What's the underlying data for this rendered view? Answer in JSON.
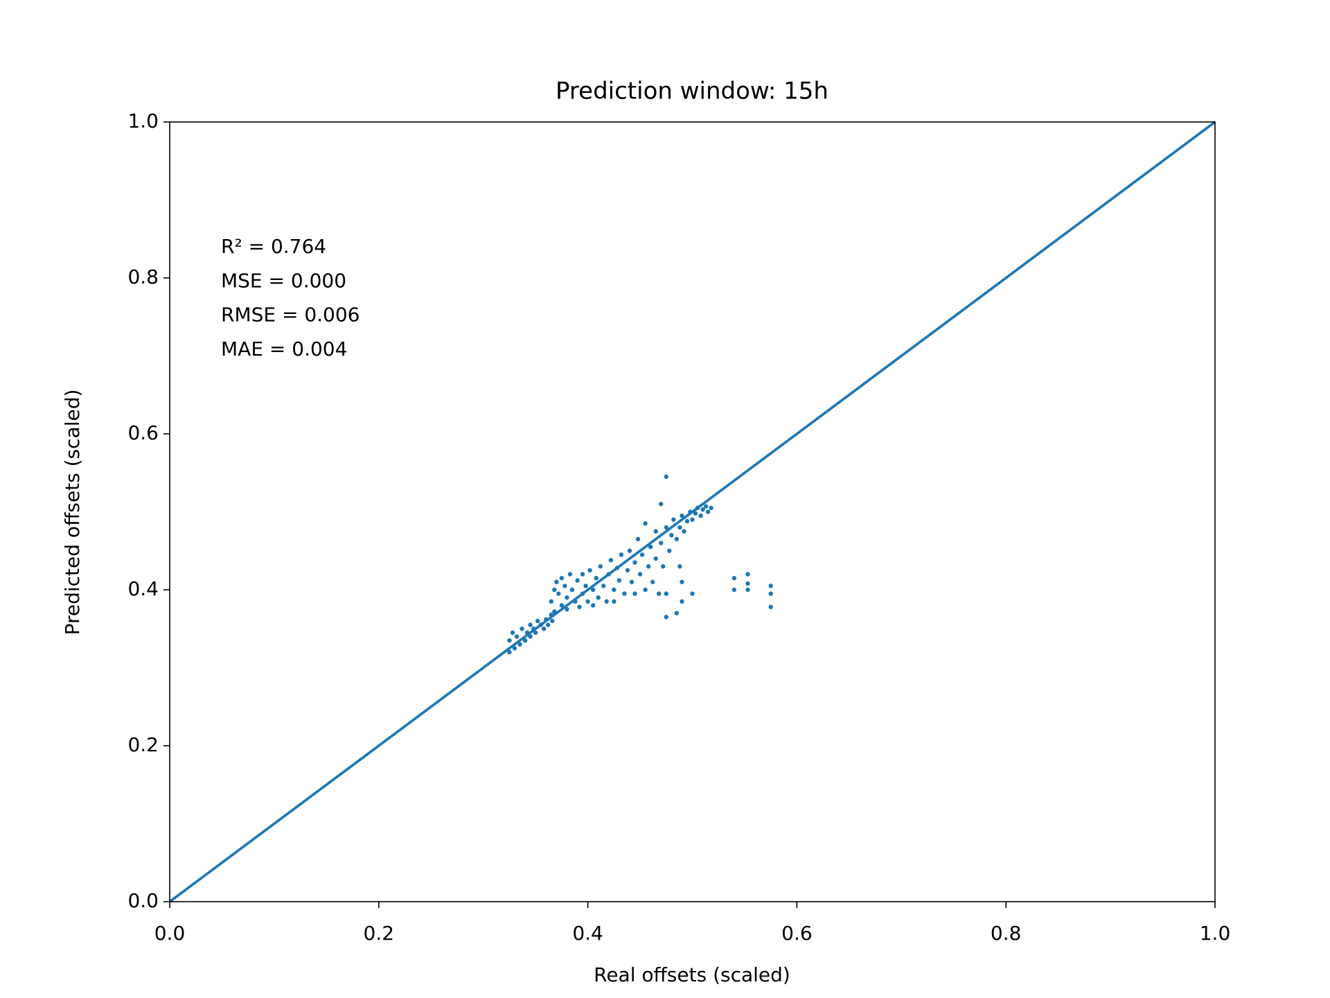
{
  "chart_data": {
    "type": "scatter",
    "title": "Prediction window: 15h",
    "xlabel": "Real offsets (scaled)",
    "ylabel": "Predicted offsets (scaled)",
    "annotations": [
      "R² = 0.764",
      "MSE = 0.000",
      "RMSE = 0.006",
      "MAE = 0.004"
    ],
    "xlim": [
      0,
      1
    ],
    "ylim": [
      0,
      1
    ],
    "xticks": [
      {
        "value": 0,
        "label": "0.0"
      },
      0.2,
      0.4,
      0.6,
      0.8,
      {
        "value": 1,
        "label": "1.0"
      }
    ],
    "yticks": [
      {
        "value": 0,
        "label": "0.0"
      },
      0.2,
      0.4,
      0.6,
      0.8,
      {
        "value": 1,
        "label": "1.0"
      }
    ],
    "series": [
      {
        "type": "scatter",
        "color": "#1f77b4",
        "x": [
          0.325,
          0.325,
          0.328,
          0.33,
          0.332,
          0.335,
          0.337,
          0.34,
          0.342,
          0.345,
          0.345,
          0.348,
          0.35,
          0.352,
          0.355,
          0.358,
          0.36,
          0.362,
          0.365,
          0.366,
          0.368,
          0.365,
          0.368,
          0.37,
          0.372,
          0.375,
          0.375,
          0.378,
          0.38,
          0.38,
          0.383,
          0.385,
          0.388,
          0.39,
          0.392,
          0.395,
          0.395,
          0.398,
          0.4,
          0.402,
          0.405,
          0.405,
          0.408,
          0.41,
          0.412,
          0.415,
          0.418,
          0.42,
          0.422,
          0.425,
          0.425,
          0.428,
          0.43,
          0.432,
          0.435,
          0.438,
          0.44,
          0.442,
          0.445,
          0.445,
          0.448,
          0.45,
          0.452,
          0.455,
          0.455,
          0.458,
          0.46,
          0.462,
          0.465,
          0.465,
          0.468,
          0.47,
          0.47,
          0.472,
          0.475,
          0.475,
          0.478,
          0.48,
          0.482,
          0.485,
          0.488,
          0.49,
          0.492,
          0.495,
          0.498,
          0.5,
          0.503,
          0.505,
          0.508,
          0.51,
          0.513,
          0.515,
          0.518,
          0.475,
          0.485,
          0.475,
          0.49,
          0.5,
          0.49,
          0.488,
          0.54,
          0.54,
          0.553,
          0.553,
          0.553,
          0.575,
          0.575,
          0.575
        ],
        "y": [
          0.32,
          0.335,
          0.345,
          0.325,
          0.34,
          0.33,
          0.35,
          0.335,
          0.345,
          0.34,
          0.355,
          0.35,
          0.345,
          0.36,
          0.355,
          0.35,
          0.362,
          0.355,
          0.368,
          0.36,
          0.372,
          0.385,
          0.4,
          0.41,
          0.395,
          0.38,
          0.415,
          0.405,
          0.39,
          0.375,
          0.42,
          0.4,
          0.385,
          0.412,
          0.378,
          0.395,
          0.42,
          0.405,
          0.385,
          0.425,
          0.4,
          0.38,
          0.415,
          0.39,
          0.43,
          0.405,
          0.385,
          0.42,
          0.438,
          0.4,
          0.385,
          0.428,
          0.412,
          0.445,
          0.395,
          0.425,
          0.45,
          0.41,
          0.435,
          0.395,
          0.465,
          0.42,
          0.445,
          0.4,
          0.485,
          0.43,
          0.455,
          0.41,
          0.44,
          0.475,
          0.395,
          0.46,
          0.51,
          0.43,
          0.545,
          0.48,
          0.45,
          0.47,
          0.49,
          0.465,
          0.48,
          0.495,
          0.475,
          0.488,
          0.5,
          0.49,
          0.498,
          0.505,
          0.495,
          0.503,
          0.507,
          0.5,
          0.505,
          0.365,
          0.37,
          0.395,
          0.385,
          0.395,
          0.41,
          0.43,
          0.415,
          0.4,
          0.42,
          0.408,
          0.4,
          0.405,
          0.395,
          0.378
        ]
      },
      {
        "type": "line",
        "color": "#1f77b4",
        "x": [
          0,
          1
        ],
        "y": [
          0,
          1
        ]
      }
    ]
  }
}
